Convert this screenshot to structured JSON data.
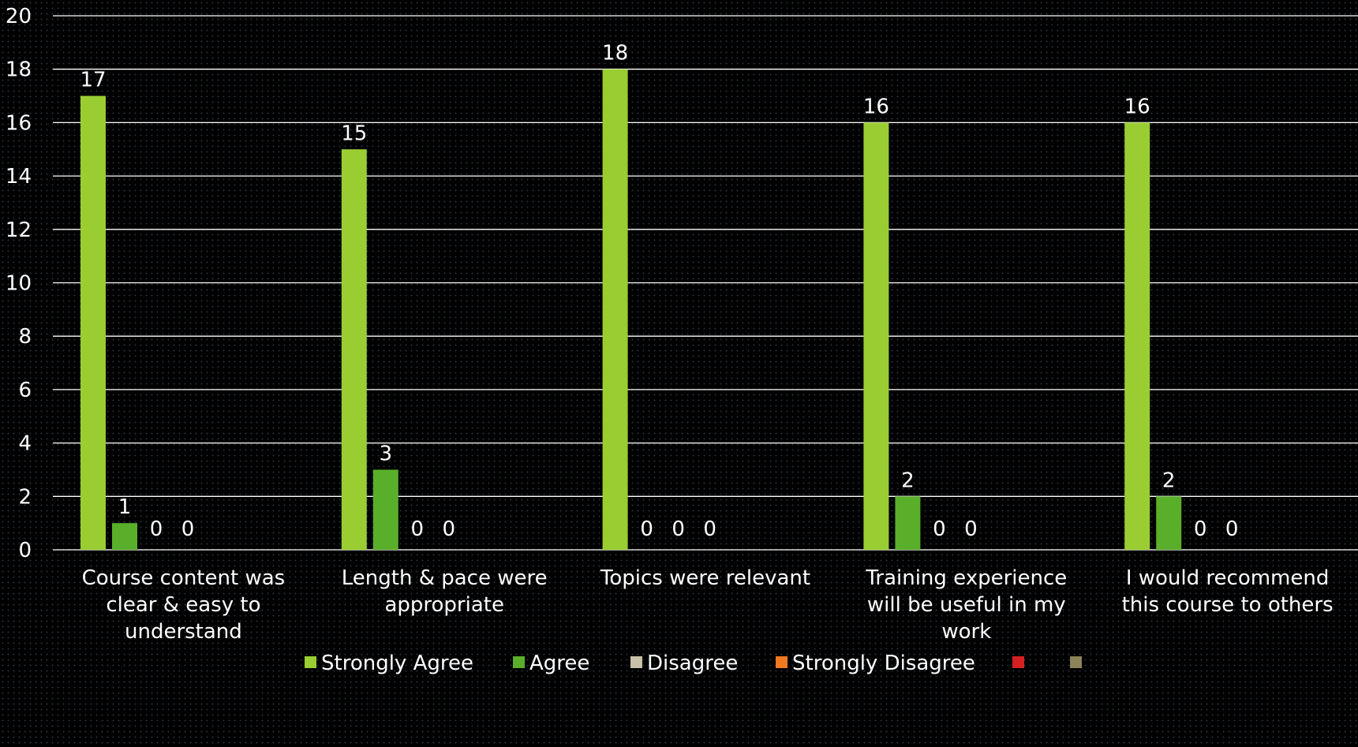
{
  "chart_data": {
    "type": "bar",
    "title": "",
    "xlabel": "",
    "ylabel": "",
    "ylim": [
      0,
      20
    ],
    "yticks": [
      0,
      2,
      4,
      6,
      8,
      10,
      12,
      14,
      16,
      18,
      20
    ],
    "grid": true,
    "legend_position": "bottom",
    "categories": [
      [
        "Course content was",
        "clear & easy to",
        "understand"
      ],
      [
        "Length & pace were",
        "appropriate"
      ],
      [
        "Topics were relevant"
      ],
      [
        "Training experience",
        "will be useful in my",
        "work"
      ],
      [
        "I would recommend",
        "this course to others"
      ]
    ],
    "series": [
      {
        "name": "Strongly Agree",
        "color": "#9ACD32",
        "values": [
          17,
          15,
          18,
          16,
          16
        ]
      },
      {
        "name": "Agree",
        "color": "#5AAF2A",
        "values": [
          1,
          3,
          0,
          2,
          2
        ]
      },
      {
        "name": "Disagree",
        "color": "#C8C0A8",
        "values": [
          0,
          0,
          0,
          0,
          0
        ]
      },
      {
        "name": "Strongly Disagree",
        "color": "#F07820",
        "values": [
          0,
          0,
          0,
          0,
          0
        ]
      },
      {
        "name": "",
        "color": "#D42020",
        "values": [
          null,
          null,
          null,
          null,
          null
        ]
      },
      {
        "name": "",
        "color": "#8C8458",
        "values": [
          null,
          null,
          null,
          null,
          null
        ]
      }
    ],
    "data_labels": [
      [
        17,
        1,
        0,
        0
      ],
      [
        15,
        3,
        0,
        0
      ],
      [
        18,
        0,
        0,
        0
      ],
      [
        16,
        2,
        0,
        0
      ],
      [
        16,
        2,
        0,
        0
      ]
    ]
  }
}
